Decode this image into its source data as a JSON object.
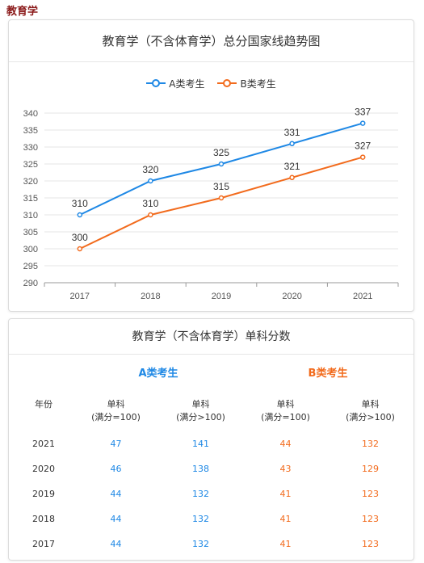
{
  "page_title": "教育学",
  "chart_data": {
    "type": "line",
    "title": "教育学（不含体育学）总分国家线趋势图",
    "categories": [
      "2017",
      "2018",
      "2019",
      "2020",
      "2021"
    ],
    "series": [
      {
        "name": "A类考生",
        "values": [
          310,
          320,
          325,
          331,
          337
        ],
        "color": "#1e88e5"
      },
      {
        "name": "B类考生",
        "values": [
          300,
          310,
          315,
          321,
          327
        ],
        "color": "#f26b1d"
      }
    ],
    "ylim": [
      290,
      340
    ],
    "yticks": [
      290,
      295,
      300,
      305,
      310,
      315,
      320,
      325,
      330,
      335,
      340
    ],
    "grid": true,
    "legend_position": "top-center"
  },
  "table": {
    "title": "教育学（不含体育学）单科分数",
    "group_a": "A类考生",
    "group_b": "B类考生",
    "headers": [
      {
        "line1": "年份",
        "line2": ""
      },
      {
        "line1": "单科",
        "line2": "(满分=100)"
      },
      {
        "line1": "单科",
        "line2": "(满分>100)"
      },
      {
        "line1": "单科",
        "line2": "(满分=100)"
      },
      {
        "line1": "单科",
        "line2": "(满分>100)"
      }
    ],
    "rows": [
      {
        "year": "2021",
        "a100": "47",
        "a_over": "141",
        "b100": "44",
        "b_over": "132"
      },
      {
        "year": "2020",
        "a100": "46",
        "a_over": "138",
        "b100": "43",
        "b_over": "129"
      },
      {
        "year": "2019",
        "a100": "44",
        "a_over": "132",
        "b100": "41",
        "b_over": "123"
      },
      {
        "year": "2018",
        "a100": "44",
        "a_over": "132",
        "b100": "41",
        "b_over": "123"
      },
      {
        "year": "2017",
        "a100": "44",
        "a_over": "132",
        "b100": "41",
        "b_over": "123"
      }
    ]
  }
}
